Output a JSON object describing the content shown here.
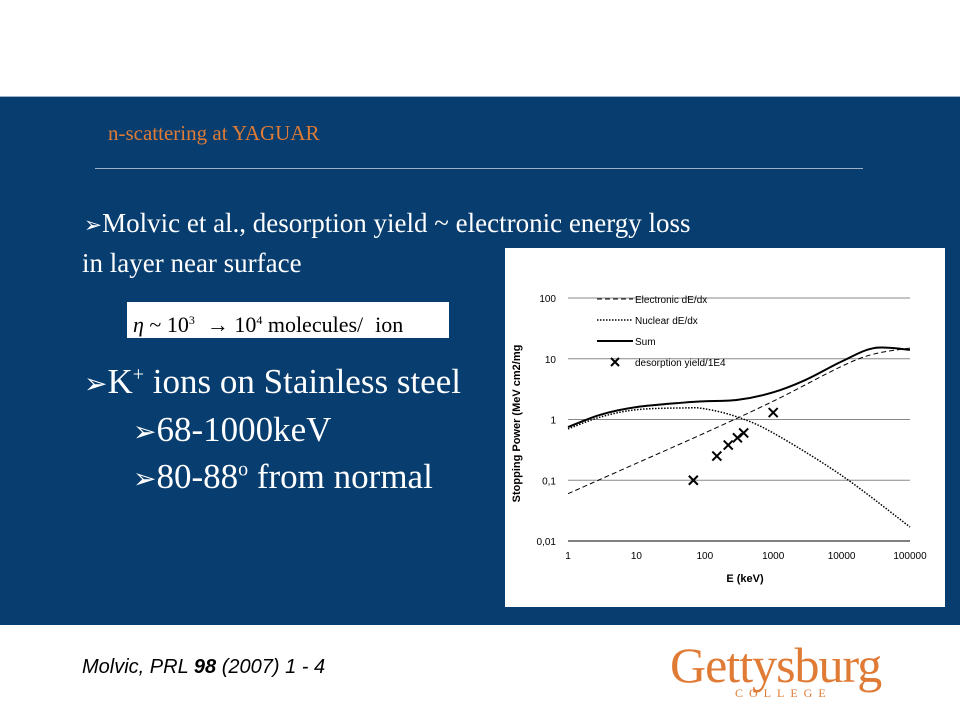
{
  "slide": {
    "title": "n-scattering at YAGUAR",
    "bullet1_line1": "Molvic et al., desorption yield  ~ electronic energy loss",
    "bullet1_line2": "in layer near surface",
    "formula": {
      "eta": "η",
      "tilde": "~",
      "ten_a": "10",
      "exp_a": "3",
      "arrow": "→",
      "ten_b": "10",
      "exp_b": "4",
      "unit": "molecules/",
      "ion": "ion"
    },
    "bullet2_main": "K",
    "bullet2_sup": "+",
    "bullet2_rest": " ions on Stainless steel",
    "bullet3": "68-1000keV",
    "bullet4_main": "80-88",
    "bullet4_sup": "o",
    "bullet4_rest": " from normal",
    "arrow_glyph": "➢"
  },
  "footer": {
    "citation_pre": "Molvic, PRL ",
    "citation_bold": "98",
    "citation_post": " (2007) 1 - 4",
    "logo_text": "Gettysburg",
    "logo_sub": "COLLEGE"
  },
  "colors": {
    "panel": "#083d6f",
    "title_orange": "#e07b35",
    "text": "#ffffff"
  },
  "chart_data": {
    "type": "line",
    "xlabel": "E (keV)",
    "ylabel": "Stopping Power (MeV cm2/mg",
    "x_scale": "log",
    "y_scale": "log",
    "xlim": [
      1,
      100000
    ],
    "ylim": [
      0.01,
      100
    ],
    "x_ticks": [
      "1",
      "10",
      "100",
      "1000",
      "10000",
      "100000"
    ],
    "y_ticks": [
      "0,01",
      "0,1",
      "1",
      "10",
      "100"
    ],
    "grid": "horizontal",
    "legend_position": "top-left",
    "series": [
      {
        "name": "Electronic dE/dx",
        "style": "dashed",
        "x": [
          1,
          10,
          100,
          1000,
          10000,
          30000,
          100000
        ],
        "y": [
          0.06,
          0.19,
          0.6,
          2.0,
          7.5,
          12,
          15
        ]
      },
      {
        "name": "Nuclear dE/dx",
        "style": "dotted",
        "x": [
          1,
          3,
          10,
          50,
          100,
          300,
          1000,
          10000,
          100000
        ],
        "y": [
          0.7,
          1.1,
          1.45,
          1.55,
          1.5,
          1.1,
          0.6,
          0.12,
          0.017
        ]
      },
      {
        "name": "Sum",
        "style": "solid",
        "x": [
          1,
          3,
          10,
          50,
          100,
          300,
          1000,
          3000,
          10000,
          30000,
          100000
        ],
        "y": [
          0.75,
          1.2,
          1.6,
          1.9,
          2.0,
          2.1,
          2.8,
          4.5,
          9,
          15,
          14
        ]
      },
      {
        "name": "desorption yield/1E4",
        "style": "markers",
        "x": [
          68,
          150,
          220,
          300,
          370,
          1000
        ],
        "y": [
          0.1,
          0.25,
          0.38,
          0.5,
          0.6,
          1.3
        ]
      }
    ]
  }
}
